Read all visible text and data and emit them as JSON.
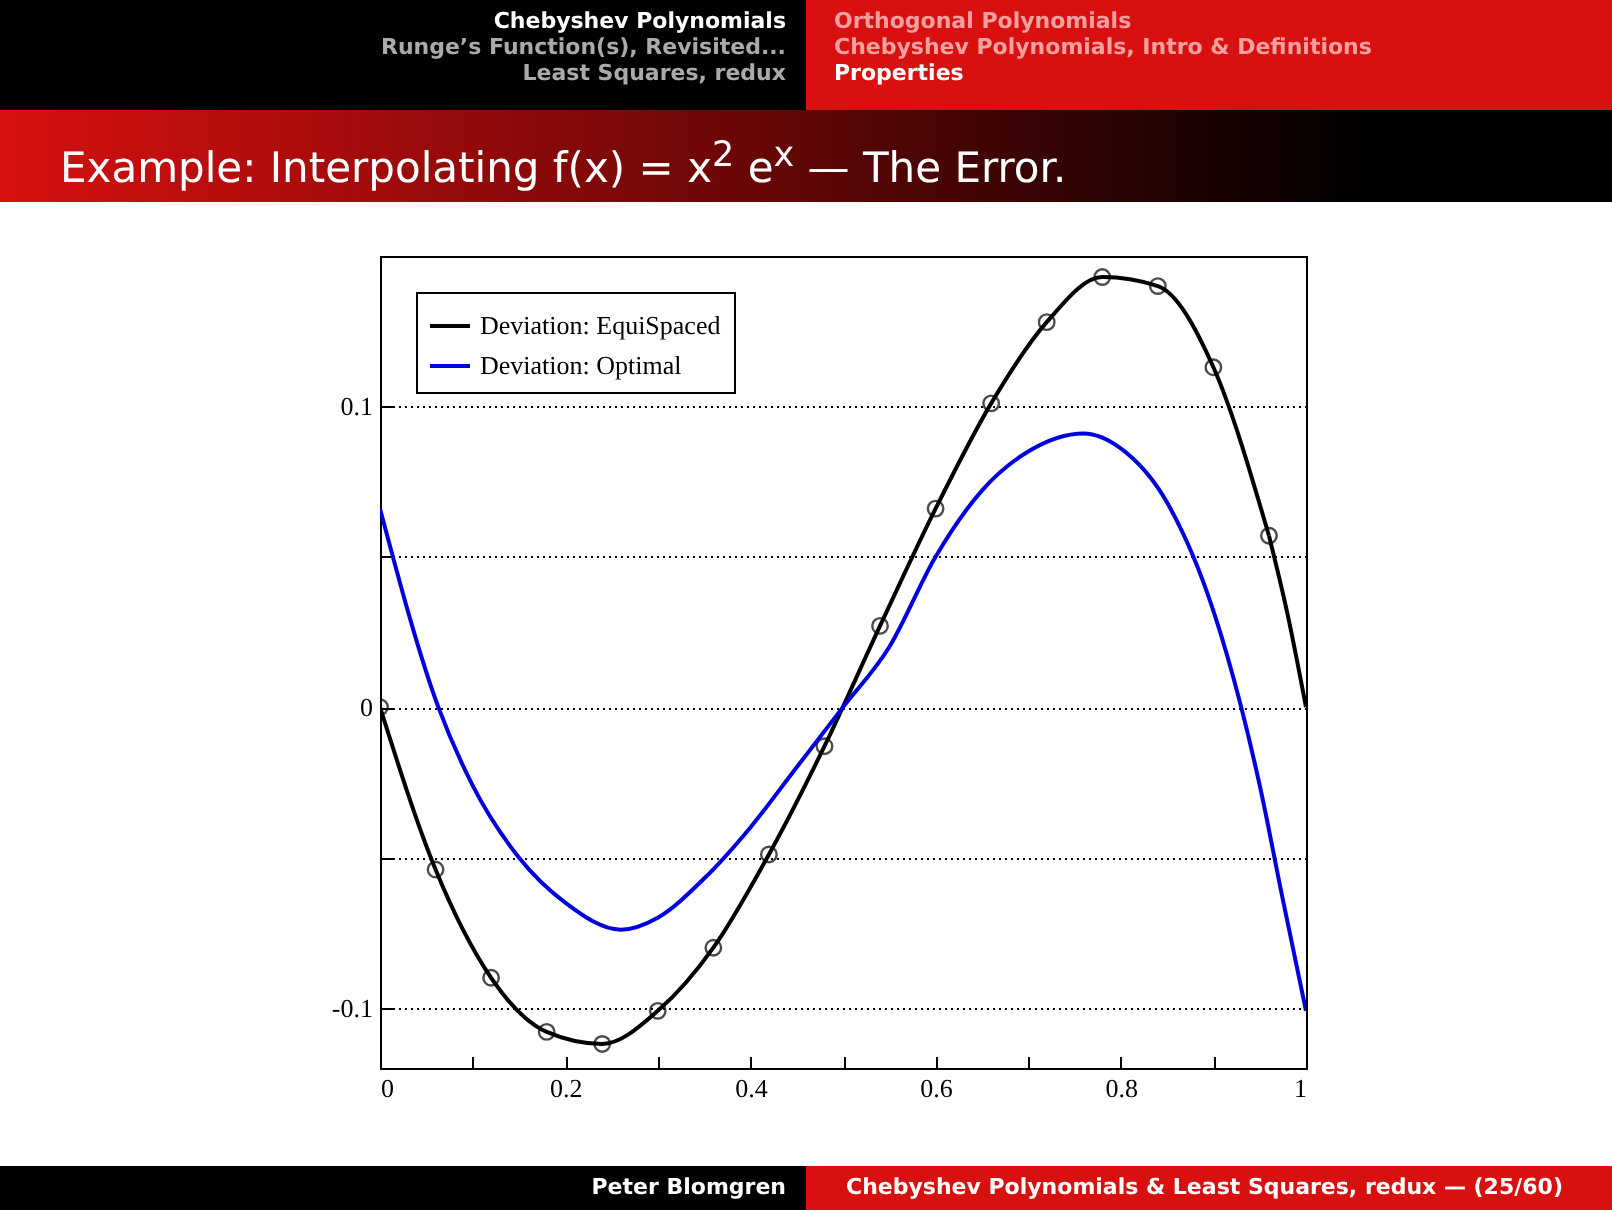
{
  "chart_data": {
    "type": "line",
    "title": "Example: Interpolating f(x) = x$^{2}$ e$^{x}$ — The Error.",
    "annotations": [
      "Chebyshev Polynomials",
      "Runge’s Function(s), Revisited...",
      "Least Squares, redux",
      "Orthogonal Polynomials",
      "Chebyshev Polynomials, Intro & Definitions",
      "Properties",
      "Peter Blomgren",
      "Chebyshev Polynomials & Least Squares, redux  — (25/60)"
    ],
    "series": [
      {
        "name": "Deviation: EquiSpaced",
        "color": "#000000",
        "marker": "circle",
        "x": [
          0,
          0.06,
          0.12,
          0.18,
          0.24,
          0.3,
          0.36,
          0.42,
          0.48,
          0.54,
          0.6,
          0.66,
          0.72,
          0.78,
          0.84,
          0.9,
          0.96
        ],
        "values": [
          0,
          -0.054,
          -0.09,
          -0.108,
          -0.112,
          -0.101,
          -0.08,
          -0.049,
          -0.013,
          0.027,
          0.066,
          0.101,
          0.128,
          0.143,
          0.14,
          0.113,
          0.057
        ]
      },
      {
        "color": "#000000",
        "marker": "none",
        "x": [
          0.96,
          0.98,
          1.0
        ],
        "values": [
          0.057,
          0.031,
          0
        ]
      },
      {
        "name": "Deviation: Optimal",
        "color": "#0000dd",
        "marker": "none",
        "x": [
          0,
          0.063,
          0.1,
          0.15,
          0.2,
          0.26,
          0.3,
          0.35,
          0.4,
          0.45,
          0.5,
          0.55,
          0.6,
          0.65,
          0.7,
          0.76,
          0.8,
          0.85,
          0.9,
          0.93,
          0.95,
          0.975,
          1.0
        ],
        "values": [
          0.066,
          0,
          -0.026,
          -0.05,
          -0.065,
          -0.074,
          -0.07,
          -0.057,
          -0.04,
          -0.02,
          0,
          0.02,
          0.05,
          0.072,
          0.085,
          0.091,
          0.086,
          0.068,
          0.032,
          0,
          -0.026,
          -0.064,
          -0.101
        ]
      }
    ],
    "xlim": [
      0,
      1
    ],
    "ylim": [
      -0.12,
      0.15
    ],
    "xticks": [
      0,
      {
        "value": 0.1,
        "label": null
      },
      0.2,
      {
        "value": 0.3,
        "label": null
      },
      0.4,
      {
        "value": 0.5,
        "label": null
      },
      0.6,
      {
        "value": 0.7,
        "label": null
      },
      0.8,
      {
        "value": 0.9,
        "label": null
      },
      1
    ],
    "yticks": [
      -0.1,
      {
        "value": -0.05,
        "label": null
      },
      0,
      {
        "value": 0.05,
        "label": null
      },
      0.1
    ],
    "grid": "y",
    "legend": "top left"
  }
}
